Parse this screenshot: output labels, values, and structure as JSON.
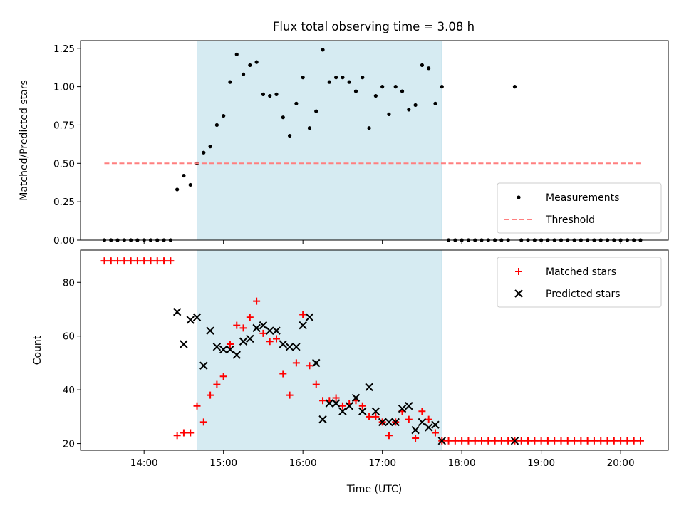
{
  "title": "Flux total observing time = 3.08 h",
  "colors": {
    "measurements": "#000000",
    "threshold": "#ff7f7f",
    "matched": "#ff0000",
    "predicted": "#000000",
    "shade": "#add8e6"
  },
  "chart_data": [
    {
      "type": "scatter",
      "ylabel": "Matched/Predicted stars",
      "ylim": [
        0,
        1.3
      ],
      "yticks": [
        0,
        0.25,
        0.5,
        0.75,
        1.0,
        1.25
      ],
      "ytick_labels": [
        "0.00",
        "0.25",
        "0.50",
        "0.75",
        "1.00",
        "1.25"
      ],
      "xlim": [
        13.2,
        20.6
      ],
      "xticks": [
        14,
        15,
        16,
        17,
        18,
        19,
        20
      ],
      "shaded_span": [
        "14:40",
        "17:45"
      ],
      "legend": "lower-right",
      "series": [
        {
          "name": "Measurements",
          "marker": "dot",
          "points": [
            [
              "13:30",
              0
            ],
            [
              "13:35",
              0
            ],
            [
              "13:40",
              0
            ],
            [
              "13:45",
              0
            ],
            [
              "13:50",
              0
            ],
            [
              "13:55",
              0
            ],
            [
              "14:00",
              0
            ],
            [
              "14:05",
              0
            ],
            [
              "14:10",
              0
            ],
            [
              "14:15",
              0
            ],
            [
              "14:20",
              0
            ],
            [
              "14:25",
              0.33
            ],
            [
              "14:30",
              0.42
            ],
            [
              "14:35",
              0.36
            ],
            [
              "14:40",
              0.5
            ],
            [
              "14:45",
              0.57
            ],
            [
              "14:50",
              0.61
            ],
            [
              "14:55",
              0.75
            ],
            [
              "15:00",
              0.81
            ],
            [
              "15:05",
              1.03
            ],
            [
              "15:10",
              1.21
            ],
            [
              "15:15",
              1.08
            ],
            [
              "15:20",
              1.14
            ],
            [
              "15:25",
              1.16
            ],
            [
              "15:30",
              0.95
            ],
            [
              "15:35",
              0.94
            ],
            [
              "15:40",
              0.95
            ],
            [
              "15:45",
              0.8
            ],
            [
              "15:50",
              0.68
            ],
            [
              "15:55",
              0.89
            ],
            [
              "16:00",
              1.06
            ],
            [
              "16:05",
              0.73
            ],
            [
              "16:10",
              0.84
            ],
            [
              "16:15",
              1.24
            ],
            [
              "16:20",
              1.03
            ],
            [
              "16:25",
              1.06
            ],
            [
              "16:30",
              1.06
            ],
            [
              "16:35",
              1.03
            ],
            [
              "16:40",
              0.97
            ],
            [
              "16:45",
              1.06
            ],
            [
              "16:50",
              0.73
            ],
            [
              "16:55",
              0.94
            ],
            [
              "17:00",
              1.0
            ],
            [
              "17:05",
              0.82
            ],
            [
              "17:10",
              1.0
            ],
            [
              "17:15",
              0.97
            ],
            [
              "17:20",
              0.85
            ],
            [
              "17:25",
              0.88
            ],
            [
              "17:30",
              1.14
            ],
            [
              "17:35",
              1.12
            ],
            [
              "17:40",
              0.89
            ],
            [
              "17:45",
              1.0
            ],
            [
              "17:50",
              0
            ],
            [
              "17:55",
              0
            ],
            [
              "18:00",
              0
            ],
            [
              "18:05",
              0
            ],
            [
              "18:10",
              0
            ],
            [
              "18:15",
              0
            ],
            [
              "18:20",
              0
            ],
            [
              "18:25",
              0
            ],
            [
              "18:30",
              0
            ],
            [
              "18:35",
              0
            ],
            [
              "18:40",
              1.0
            ],
            [
              "18:45",
              0
            ],
            [
              "18:50",
              0
            ],
            [
              "18:55",
              0
            ],
            [
              "19:00",
              0
            ],
            [
              "19:05",
              0
            ],
            [
              "19:10",
              0
            ],
            [
              "19:15",
              0
            ],
            [
              "19:20",
              0
            ],
            [
              "19:25",
              0
            ],
            [
              "19:30",
              0
            ],
            [
              "19:35",
              0
            ],
            [
              "19:40",
              0
            ],
            [
              "19:45",
              0
            ],
            [
              "19:50",
              0
            ],
            [
              "19:55",
              0
            ],
            [
              "20:00",
              0
            ],
            [
              "20:05",
              0
            ],
            [
              "20:10",
              0
            ],
            [
              "20:15",
              0
            ]
          ]
        },
        {
          "name": "Threshold",
          "line": "dashed",
          "points": [
            [
              "13:30",
              0.5
            ],
            [
              "20:15",
              0.5
            ]
          ]
        }
      ]
    },
    {
      "type": "scatter",
      "xlabel": "Time (UTC)",
      "ylabel": "Count",
      "ylim": [
        17.5,
        92
      ],
      "yticks": [
        20,
        40,
        60,
        80
      ],
      "xlim": [
        13.2,
        20.6
      ],
      "xticks": [
        14,
        15,
        16,
        17,
        18,
        19,
        20
      ],
      "xtick_labels": [
        "14:00",
        "15:00",
        "16:00",
        "17:00",
        "18:00",
        "19:00",
        "20:00"
      ],
      "shaded_span": [
        "14:40",
        "17:45"
      ],
      "legend": "top-right",
      "series": [
        {
          "name": "Matched stars",
          "marker": "plus",
          "points": [
            [
              "13:30",
              88
            ],
            [
              "13:35",
              88
            ],
            [
              "13:40",
              88
            ],
            [
              "13:45",
              88
            ],
            [
              "13:50",
              88
            ],
            [
              "13:55",
              88
            ],
            [
              "14:00",
              88
            ],
            [
              "14:05",
              88
            ],
            [
              "14:10",
              88
            ],
            [
              "14:15",
              88
            ],
            [
              "14:20",
              88
            ],
            [
              "14:25",
              23
            ],
            [
              "14:30",
              24
            ],
            [
              "14:35",
              24
            ],
            [
              "14:40",
              34
            ],
            [
              "14:45",
              28
            ],
            [
              "14:50",
              38
            ],
            [
              "14:55",
              42
            ],
            [
              "15:00",
              45
            ],
            [
              "15:05",
              57
            ],
            [
              "15:10",
              64
            ],
            [
              "15:15",
              63
            ],
            [
              "15:20",
              67
            ],
            [
              "15:25",
              73
            ],
            [
              "15:30",
              61
            ],
            [
              "15:35",
              58
            ],
            [
              "15:40",
              59
            ],
            [
              "15:45",
              46
            ],
            [
              "15:50",
              38
            ],
            [
              "15:55",
              50
            ],
            [
              "16:00",
              68
            ],
            [
              "16:05",
              49
            ],
            [
              "16:10",
              42
            ],
            [
              "16:15",
              36
            ],
            [
              "16:20",
              36
            ],
            [
              "16:25",
              37
            ],
            [
              "16:30",
              34
            ],
            [
              "16:35",
              35
            ],
            [
              "16:40",
              36
            ],
            [
              "16:45",
              34
            ],
            [
              "16:50",
              30
            ],
            [
              "16:55",
              30
            ],
            [
              "17:00",
              28
            ],
            [
              "17:05",
              23
            ],
            [
              "17:10",
              28
            ],
            [
              "17:15",
              32
            ],
            [
              "17:20",
              29
            ],
            [
              "17:25",
              22
            ],
            [
              "17:30",
              32
            ],
            [
              "17:35",
              29
            ],
            [
              "17:40",
              24
            ],
            [
              "17:45",
              21
            ],
            [
              "17:50",
              21
            ],
            [
              "17:55",
              21
            ],
            [
              "18:00",
              21
            ],
            [
              "18:05",
              21
            ],
            [
              "18:10",
              21
            ],
            [
              "18:15",
              21
            ],
            [
              "18:20",
              21
            ],
            [
              "18:25",
              21
            ],
            [
              "18:30",
              21
            ],
            [
              "18:35",
              21
            ],
            [
              "18:40",
              21
            ],
            [
              "18:45",
              21
            ],
            [
              "18:50",
              21
            ],
            [
              "18:55",
              21
            ],
            [
              "19:00",
              21
            ],
            [
              "19:05",
              21
            ],
            [
              "19:10",
              21
            ],
            [
              "19:15",
              21
            ],
            [
              "19:20",
              21
            ],
            [
              "19:25",
              21
            ],
            [
              "19:30",
              21
            ],
            [
              "19:35",
              21
            ],
            [
              "19:40",
              21
            ],
            [
              "19:45",
              21
            ],
            [
              "19:50",
              21
            ],
            [
              "19:55",
              21
            ],
            [
              "20:00",
              21
            ],
            [
              "20:05",
              21
            ],
            [
              "20:10",
              21
            ],
            [
              "20:15",
              21
            ]
          ]
        },
        {
          "name": "Predicted stars",
          "marker": "x",
          "points": [
            [
              "14:25",
              69
            ],
            [
              "14:30",
              57
            ],
            [
              "14:35",
              66
            ],
            [
              "14:40",
              67
            ],
            [
              "14:45",
              49
            ],
            [
              "14:50",
              62
            ],
            [
              "14:55",
              56
            ],
            [
              "15:00",
              55
            ],
            [
              "15:05",
              55
            ],
            [
              "15:10",
              53
            ],
            [
              "15:15",
              58
            ],
            [
              "15:20",
              59
            ],
            [
              "15:25",
              63
            ],
            [
              "15:30",
              64
            ],
            [
              "15:35",
              62
            ],
            [
              "15:40",
              62
            ],
            [
              "15:45",
              57
            ],
            [
              "15:50",
              56
            ],
            [
              "15:55",
              56
            ],
            [
              "16:00",
              64
            ],
            [
              "16:05",
              67
            ],
            [
              "16:10",
              50
            ],
            [
              "16:15",
              29
            ],
            [
              "16:20",
              35
            ],
            [
              "16:25",
              35
            ],
            [
              "16:30",
              32
            ],
            [
              "16:35",
              34
            ],
            [
              "16:40",
              37
            ],
            [
              "16:45",
              32
            ],
            [
              "16:50",
              41
            ],
            [
              "16:55",
              32
            ],
            [
              "17:00",
              28
            ],
            [
              "17:05",
              28
            ],
            [
              "17:10",
              28
            ],
            [
              "17:15",
              33
            ],
            [
              "17:20",
              34
            ],
            [
              "17:25",
              25
            ],
            [
              "17:30",
              28
            ],
            [
              "17:35",
              26
            ],
            [
              "17:40",
              27
            ],
            [
              "17:45",
              21
            ],
            [
              "18:40",
              21
            ]
          ]
        }
      ]
    }
  ]
}
